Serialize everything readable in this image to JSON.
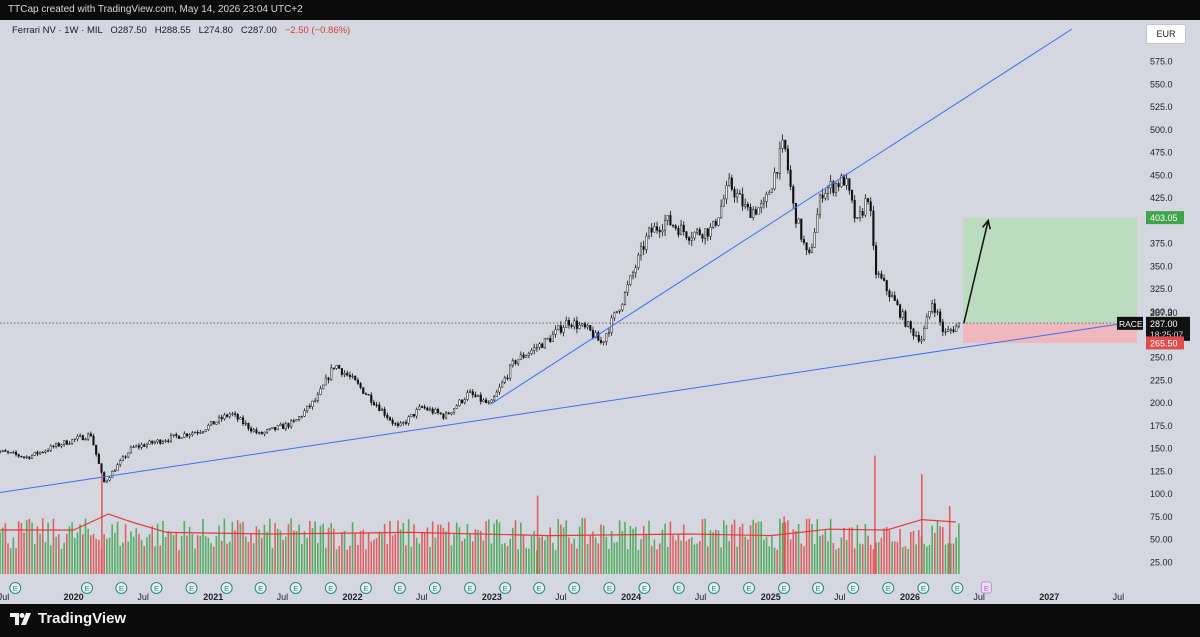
{
  "header": {
    "attribution": "TTCap created with TradingView.com, May 14, 2026 23:04 UTC+2"
  },
  "legend": {
    "symbol": "Ferrari NV · 1W · MIL",
    "open_label": "O",
    "open": "287.50",
    "high_label": "H",
    "high": "288.55",
    "low_label": "L",
    "low": "274.80",
    "close_label": "C",
    "close": "287.00",
    "change": "−2.50 (−0.86%)"
  },
  "currency": "EUR",
  "branding": {
    "name": "TradingView"
  },
  "colors": {
    "up": "#3fa44a",
    "down": "#e04b4b",
    "trendline": "#3b6ff0",
    "ma": "#e23a3a",
    "target_zone": "#bcdcbf",
    "stop_zone": "#f0b7bf",
    "background": "#d4d7e0"
  },
  "chart_data": {
    "type": "candlestick",
    "title": "Ferrari NV · 1W · MIL",
    "ylim": [
      0,
      620
    ],
    "y_ticks": [
      "575.0",
      "550.0",
      "525.0",
      "500.0",
      "475.0",
      "450.0",
      "425.0",
      "400.0",
      "375.0",
      "350.0",
      "325.0",
      "300.0",
      "275.0",
      "250.0",
      "225.0",
      "200.0",
      "175.0",
      "150.0",
      "125.0",
      "100.0",
      "75.00",
      "50.00",
      "25.00"
    ],
    "x_labels": [
      "Jul",
      "2020",
      "Jul",
      "2021",
      "Jul",
      "2022",
      "Jul",
      "2023",
      "Jul",
      "2024",
      "Jul",
      "2025",
      "Jul",
      "2026",
      "Jul",
      "2027",
      "Jul"
    ],
    "x_range": [
      "2019-06",
      "2027-09"
    ],
    "price_path": [
      [
        "2019-06-01",
        148
      ],
      [
        "2019-09-01",
        140
      ],
      [
        "2019-12-01",
        155
      ],
      [
        "2020-02-15",
        165
      ],
      [
        "2020-03-20",
        112
      ],
      [
        "2020-06-01",
        150
      ],
      [
        "2020-09-01",
        160
      ],
      [
        "2020-12-01",
        170
      ],
      [
        "2021-02-15",
        188
      ],
      [
        "2021-05-01",
        165
      ],
      [
        "2021-08-01",
        178
      ],
      [
        "2021-10-01",
        205
      ],
      [
        "2021-11-15",
        242
      ],
      [
        "2022-01-01",
        225
      ],
      [
        "2022-03-01",
        200
      ],
      [
        "2022-05-01",
        172
      ],
      [
        "2022-07-01",
        195
      ],
      [
        "2022-09-01",
        185
      ],
      [
        "2022-11-01",
        210
      ],
      [
        "2022-12-28",
        197
      ],
      [
        "2023-03-01",
        245
      ],
      [
        "2023-06-01",
        270
      ],
      [
        "2023-07-20",
        290
      ],
      [
        "2023-09-15",
        278
      ],
      [
        "2023-10-15",
        265
      ],
      [
        "2023-12-15",
        318
      ],
      [
        "2024-02-15",
        385
      ],
      [
        "2024-04-01",
        400
      ],
      [
        "2024-06-01",
        385
      ],
      [
        "2024-08-01",
        390
      ],
      [
        "2024-09-15",
        440
      ],
      [
        "2024-11-01",
        410
      ],
      [
        "2024-12-15",
        415
      ],
      [
        "2025-02-05",
        485
      ],
      [
        "2025-03-01",
        415
      ],
      [
        "2025-04-10",
        355
      ],
      [
        "2025-05-15",
        432
      ],
      [
        "2025-07-15",
        445
      ],
      [
        "2025-08-15",
        395
      ],
      [
        "2025-09-15",
        430
      ],
      [
        "2025-10-01",
        345
      ],
      [
        "2025-11-15",
        315
      ],
      [
        "2026-01-01",
        280
      ],
      [
        "2026-02-01",
        270
      ],
      [
        "2026-03-01",
        312
      ],
      [
        "2026-04-01",
        275
      ],
      [
        "2026-05-14",
        287
      ]
    ],
    "volume_panel": {
      "moving_average": [
        [
          "2019-06-01",
          55
        ],
        [
          "2020-01-01",
          55
        ],
        [
          "2020-04-01",
          75
        ],
        [
          "2020-06-01",
          65
        ],
        [
          "2020-09-01",
          52
        ],
        [
          "2021-06-01",
          50
        ],
        [
          "2022-06-01",
          52
        ],
        [
          "2023-06-01",
          48
        ],
        [
          "2024-06-01",
          50
        ],
        [
          "2025-01-01",
          48
        ],
        [
          "2025-06-01",
          56
        ],
        [
          "2025-11-01",
          55
        ],
        [
          "2026-02-01",
          68
        ],
        [
          "2026-05-01",
          65
        ]
      ],
      "spikes": [
        [
          "2020-03-15",
          125
        ],
        [
          "2023-05-01",
          98
        ],
        [
          "2025-02-05",
          72
        ],
        [
          "2025-10-01",
          148
        ],
        [
          "2026-02-01",
          125
        ],
        [
          "2026-04-15",
          85
        ]
      ]
    },
    "trendlines": [
      {
        "from": [
          "2019-06-01",
          100
        ],
        "to": [
          "2027-09-01",
          290
        ]
      },
      {
        "from": [
          "2022-12-28",
          198
        ],
        "to": [
          "2027-03-01",
          610
        ]
      }
    ],
    "position": {
      "entry": 287.0,
      "target": 403.05,
      "stop": 265.5,
      "start": "2026-05-20",
      "end": "2027-09-01"
    },
    "price_labels": [
      {
        "value": "403.05",
        "kind": "target"
      },
      {
        "value": "287.30",
        "kind": "last"
      },
      {
        "symbol": "RACE",
        "value": "287.00",
        "countdown": "18:25:07",
        "kind": "current"
      },
      {
        "value": "265.50",
        "kind": "stop"
      }
    ]
  }
}
